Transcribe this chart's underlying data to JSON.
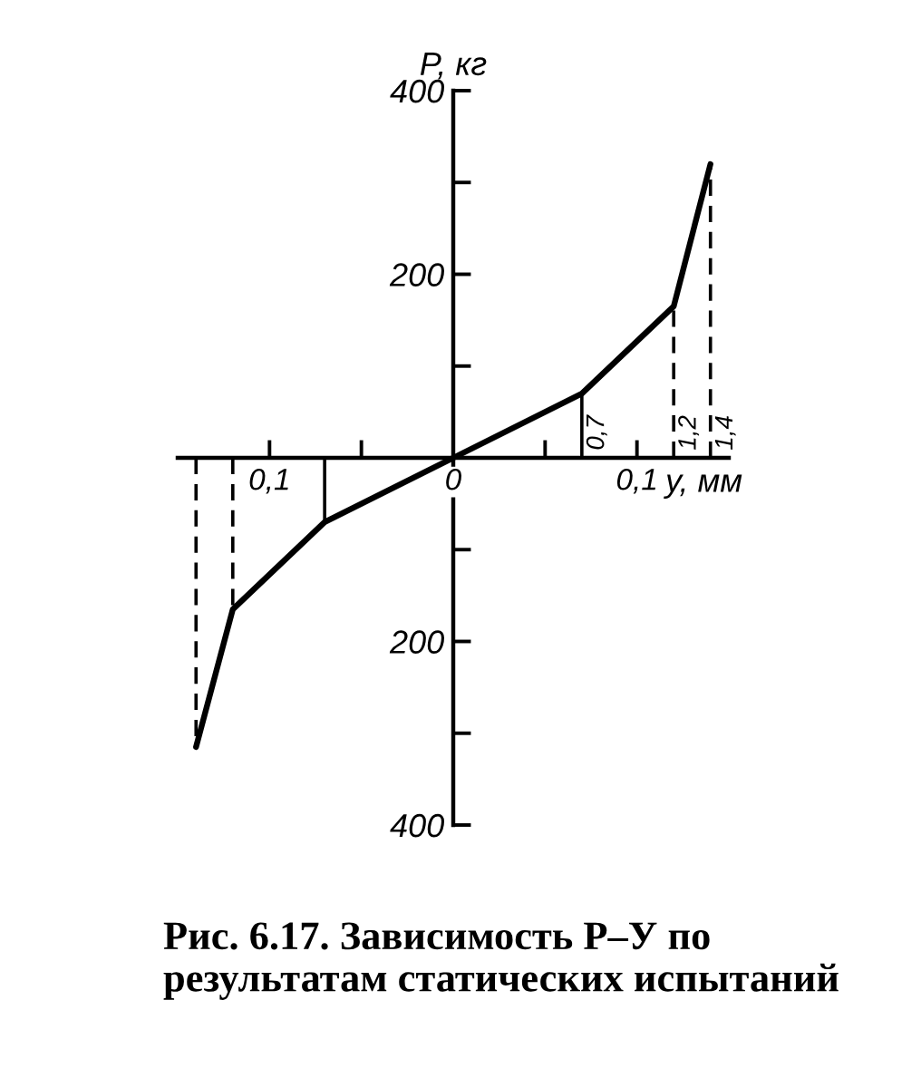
{
  "chart_data": {
    "type": "line",
    "x": [
      -0.14,
      -0.12,
      -0.07,
      0,
      0.07,
      0.12,
      0.14
    ],
    "values": [
      -315,
      -165,
      -70,
      0,
      70,
      165,
      320
    ],
    "color": "#000000",
    "line_style": "solid",
    "xlim": [
      -0.15,
      0.15
    ],
    "ylim": [
      -400,
      400
    ],
    "xticks": [
      {
        "value": -0.1,
        "label": "0,1"
      },
      {
        "value": -0.05,
        "label": null
      },
      0,
      {
        "value": 0.05,
        "label": null
      },
      {
        "value": 0.1,
        "label": "0,1"
      }
    ],
    "yticks": [
      {
        "value": -400,
        "label": "400"
      },
      {
        "value": -300,
        "label": null
      },
      {
        "value": -200,
        "label": "200"
      },
      {
        "value": -100,
        "label": null
      },
      {
        "value": 100,
        "label": null
      },
      200,
      {
        "value": 300,
        "label": null
      },
      400
    ],
    "xlabel": "y, мм",
    "ylabel": "P, кг",
    "ref_lines": [
      {
        "axis": "x",
        "value": -0.14,
        "line_style": "dashed",
        "color": "#000000"
      },
      {
        "axis": "x",
        "value": -0.12,
        "line_style": "dashed",
        "color": "#000000"
      },
      {
        "axis": "x",
        "value": -0.07,
        "line_style": "solid",
        "color": "#000000"
      },
      {
        "axis": "x",
        "value": 0.07,
        "line_style": "solid",
        "color": "#000000"
      },
      {
        "axis": "x",
        "value": 0.12,
        "line_style": "dashed",
        "color": "#000000"
      },
      {
        "axis": "x",
        "value": 0.14,
        "line_style": "dashed",
        "color": "#000000"
      }
    ],
    "annotations": [
      {
        "text": "0,7",
        "x": 0.07,
        "y": 0
      },
      {
        "text": "1,2",
        "x": 0.12,
        "y": 0
      },
      {
        "text": "1,4",
        "x": 0.14,
        "y": 0
      },
      "Рис. 6.17. Зависимость P–У по результатам статических испытаний"
    ]
  }
}
